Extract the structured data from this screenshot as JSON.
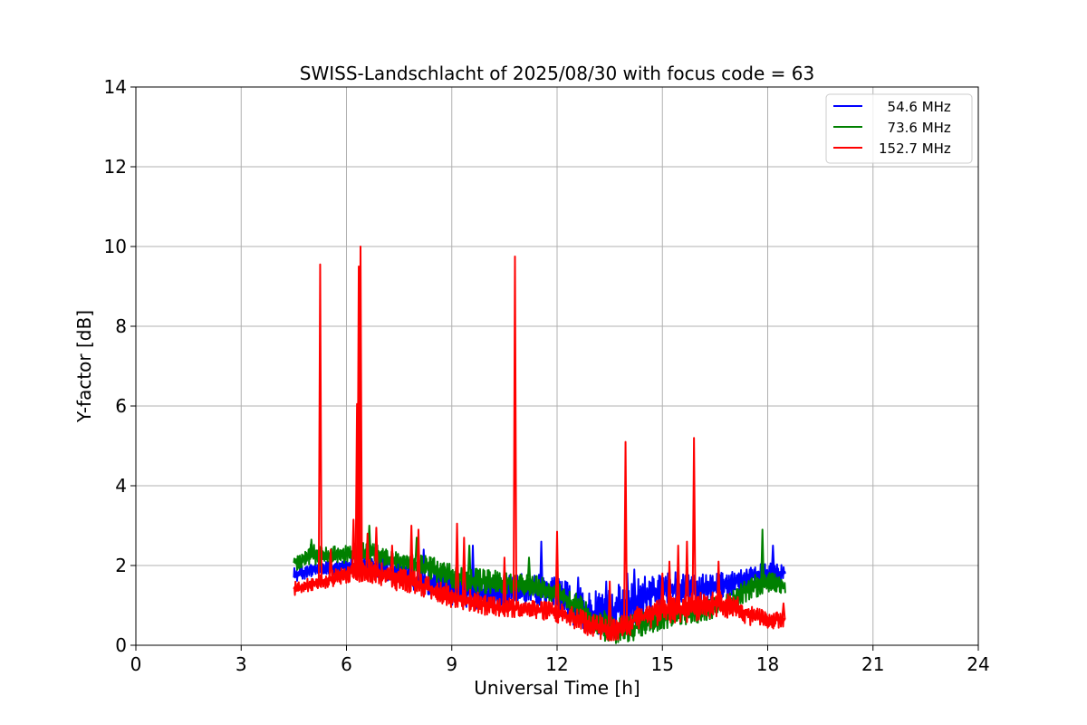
{
  "chart_data": {
    "type": "line",
    "title": "SWISS-Landschlacht of 2025/08/30 with focus code = 63",
    "xlabel": "Universal Time [h]",
    "ylabel": "Y-factor [dB]",
    "xlim": [
      0,
      24
    ],
    "ylim": [
      0,
      14
    ],
    "xticks": [
      0,
      3,
      6,
      9,
      12,
      15,
      18,
      21,
      24
    ],
    "yticks": [
      0,
      2,
      4,
      6,
      8,
      10,
      12,
      14
    ],
    "grid": true,
    "legend_position": "top-right",
    "series": [
      {
        "name": "  54.6 MHz",
        "color": "#0000ff",
        "x": [
          4.5,
          5.0,
          5.5,
          6.0,
          6.5,
          7.0,
          7.5,
          8.0,
          8.5,
          9.0,
          9.5,
          10.0,
          10.5,
          11.0,
          11.5,
          12.0,
          12.5,
          13.0,
          13.5,
          14.0,
          14.5,
          15.0,
          15.5,
          16.0,
          16.5,
          17.0,
          17.5,
          18.0,
          18.5
        ],
        "y": [
          1.75,
          1.85,
          1.9,
          1.95,
          1.95,
          1.85,
          1.75,
          1.6,
          1.45,
          1.3,
          1.2,
          1.15,
          1.2,
          1.25,
          1.2,
          1.1,
          0.85,
          0.65,
          0.6,
          0.8,
          1.05,
          1.25,
          1.35,
          1.3,
          1.35,
          1.45,
          1.6,
          1.7,
          1.75
        ],
        "low": [
          1.55,
          1.7,
          1.75,
          1.8,
          1.75,
          1.65,
          1.5,
          1.3,
          1.15,
          1.0,
          0.9,
          0.9,
          0.95,
          1.0,
          0.95,
          0.8,
          0.45,
          0.2,
          0.15,
          0.35,
          0.7,
          0.95,
          1.05,
          1.05,
          1.15,
          1.25,
          1.45,
          1.55,
          1.6
        ],
        "high": [
          2.0,
          2.05,
          2.1,
          2.2,
          2.3,
          2.2,
          2.1,
          2.0,
          1.95,
          1.9,
          1.75,
          1.7,
          1.75,
          1.8,
          1.8,
          1.7,
          1.5,
          1.35,
          1.45,
          1.6,
          1.75,
          1.8,
          1.85,
          1.8,
          1.8,
          1.85,
          1.95,
          2.1,
          2.0
        ],
        "spikes": [
          [
            8.2,
            2.4
          ],
          [
            9.6,
            2.5
          ],
          [
            11.55,
            2.6
          ],
          [
            12.6,
            1.7
          ],
          [
            13.4,
            1.6
          ],
          [
            14.0,
            1.8
          ],
          [
            14.2,
            1.9
          ],
          [
            15.2,
            1.9
          ],
          [
            17.4,
            1.9
          ],
          [
            18.15,
            2.5
          ]
        ]
      },
      {
        "name": "  73.6 MHz",
        "color": "#008000",
        "x": [
          4.5,
          5.0,
          5.5,
          6.0,
          6.5,
          7.0,
          7.5,
          8.0,
          8.5,
          9.0,
          9.5,
          10.0,
          10.5,
          11.0,
          11.5,
          12.0,
          12.5,
          13.0,
          13.5,
          14.0,
          14.5,
          15.0,
          15.5,
          16.0,
          16.5,
          17.0,
          17.5,
          18.0,
          18.5
        ],
        "y": [
          2.05,
          2.2,
          2.2,
          2.25,
          2.25,
          2.2,
          2.1,
          2.0,
          1.85,
          1.7,
          1.6,
          1.55,
          1.55,
          1.5,
          1.45,
          1.3,
          1.0,
          0.6,
          0.35,
          0.3,
          0.5,
          0.65,
          0.7,
          0.75,
          0.85,
          1.05,
          1.35,
          1.5,
          1.45
        ],
        "low": [
          1.85,
          2.0,
          2.0,
          2.05,
          2.05,
          2.0,
          1.9,
          1.8,
          1.6,
          1.45,
          1.35,
          1.3,
          1.3,
          1.25,
          1.2,
          1.05,
          0.7,
          0.25,
          0.05,
          0.05,
          0.25,
          0.4,
          0.5,
          0.55,
          0.7,
          0.9,
          1.15,
          1.3,
          1.25
        ],
        "high": [
          2.3,
          2.55,
          2.45,
          2.55,
          2.6,
          2.5,
          2.35,
          2.3,
          2.2,
          2.05,
          1.95,
          1.9,
          1.85,
          1.8,
          1.75,
          1.6,
          1.35,
          1.0,
          0.8,
          0.75,
          0.9,
          1.0,
          1.05,
          1.1,
          1.2,
          1.4,
          1.75,
          1.85,
          1.7
        ],
        "spikes": [
          [
            5.0,
            2.65
          ],
          [
            6.65,
            3.0
          ],
          [
            8.0,
            2.7
          ],
          [
            9.5,
            2.5
          ],
          [
            11.2,
            2.2
          ],
          [
            17.85,
            2.9
          ]
        ]
      },
      {
        "name": "152.7 MHz",
        "color": "#ff0000",
        "x": [
          4.5,
          5.0,
          5.5,
          6.0,
          6.5,
          7.0,
          7.5,
          8.0,
          8.5,
          9.0,
          9.5,
          10.0,
          10.5,
          11.0,
          11.5,
          12.0,
          12.5,
          13.0,
          13.5,
          14.0,
          14.5,
          15.0,
          15.5,
          16.0,
          16.5,
          17.0,
          17.5,
          18.0,
          18.5
        ],
        "y": [
          1.4,
          1.5,
          1.6,
          1.75,
          1.85,
          1.75,
          1.6,
          1.5,
          1.35,
          1.2,
          1.1,
          0.95,
          0.9,
          0.85,
          0.85,
          0.8,
          0.65,
          0.45,
          0.35,
          0.5,
          0.7,
          0.8,
          0.85,
          0.9,
          0.95,
          0.9,
          0.7,
          0.6,
          0.65
        ],
        "low": [
          1.25,
          1.35,
          1.45,
          1.55,
          1.6,
          1.5,
          1.35,
          1.25,
          1.1,
          0.95,
          0.85,
          0.75,
          0.7,
          0.7,
          0.65,
          0.55,
          0.4,
          0.2,
          0.05,
          0.2,
          0.4,
          0.5,
          0.55,
          0.6,
          0.7,
          0.65,
          0.5,
          0.4,
          0.45
        ],
        "high": [
          1.6,
          1.7,
          1.85,
          2.0,
          2.2,
          2.1,
          1.95,
          1.85,
          1.65,
          1.5,
          1.4,
          1.25,
          1.2,
          1.15,
          1.1,
          1.1,
          0.95,
          0.8,
          0.75,
          0.85,
          1.05,
          1.2,
          1.3,
          1.35,
          1.4,
          1.3,
          1.0,
          0.85,
          0.85
        ],
        "spikes": [
          [
            5.25,
            9.55
          ],
          [
            5.55,
            2.4
          ],
          [
            6.2,
            3.15
          ],
          [
            6.3,
            6.05
          ],
          [
            6.35,
            9.5
          ],
          [
            6.4,
            10.0
          ],
          [
            6.6,
            2.8
          ],
          [
            6.85,
            2.95
          ],
          [
            7.3,
            2.5
          ],
          [
            7.85,
            3.0
          ],
          [
            8.05,
            2.9
          ],
          [
            9.15,
            3.05
          ],
          [
            9.35,
            2.7
          ],
          [
            10.5,
            2.2
          ],
          [
            10.8,
            9.75
          ],
          [
            12.0,
            2.85
          ],
          [
            13.5,
            1.6
          ],
          [
            13.95,
            5.1
          ],
          [
            15.0,
            1.8
          ],
          [
            15.2,
            2.1
          ],
          [
            15.45,
            2.5
          ],
          [
            15.7,
            2.6
          ],
          [
            15.9,
            5.2
          ],
          [
            16.6,
            2.1
          ],
          [
            18.45,
            1.05
          ]
        ]
      }
    ]
  }
}
